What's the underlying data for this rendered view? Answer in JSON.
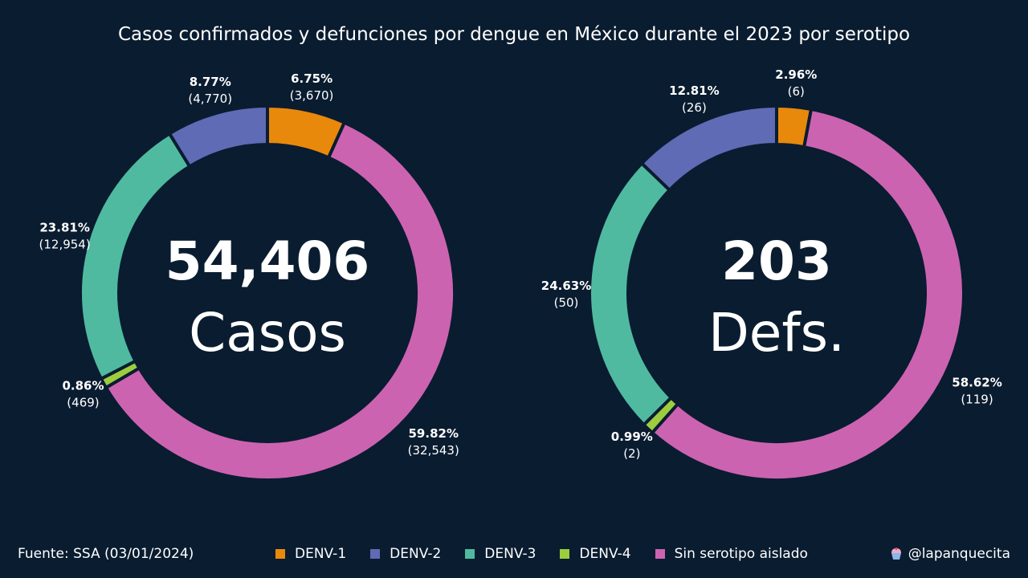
{
  "title": "Casos confirmados y defunciones por dengue en México durante el 2023 por serotipo",
  "source": "Fuente: SSA (03/01/2024)",
  "handle": "@lapanquecita",
  "legend": [
    {
      "label": "DENV-1",
      "color": "#e8890c"
    },
    {
      "label": "DENV-2",
      "color": "#5f6bb5"
    },
    {
      "label": "DENV-3",
      "color": "#4fbaa0"
    },
    {
      "label": "DENV-4",
      "color": "#9ccd3f"
    },
    {
      "label": "Sin serotipo aislado",
      "color": "#cc63b0"
    }
  ],
  "chart_data": [
    {
      "type": "pie",
      "donut": true,
      "center_value": "54,406",
      "center_label": "Casos",
      "slices": [
        {
          "name": "DENV-1",
          "value": 3670,
          "percent": "6.75%",
          "count": "(3,670)"
        },
        {
          "name": "Sin serotipo aislado",
          "value": 32543,
          "percent": "59.82%",
          "count": "(32,543)"
        },
        {
          "name": "DENV-4",
          "value": 469,
          "percent": "0.86%",
          "count": "(469)"
        },
        {
          "name": "DENV-3",
          "value": 12954,
          "percent": "23.81%",
          "count": "(12,954)"
        },
        {
          "name": "DENV-2",
          "value": 4770,
          "percent": "8.77%",
          "count": "(4,770)"
        }
      ]
    },
    {
      "type": "pie",
      "donut": true,
      "center_value": "203",
      "center_label": "Defs.",
      "slices": [
        {
          "name": "DENV-1",
          "value": 6,
          "percent": "2.96%",
          "count": "(6)"
        },
        {
          "name": "Sin serotipo aislado",
          "value": 119,
          "percent": "58.62%",
          "count": "(119)"
        },
        {
          "name": "DENV-4",
          "value": 2,
          "percent": "0.99%",
          "count": "(2)"
        },
        {
          "name": "DENV-3",
          "value": 50,
          "percent": "24.63%",
          "count": "(50)"
        },
        {
          "name": "DENV-2",
          "value": 26,
          "percent": "12.81%",
          "count": "(26)"
        }
      ]
    }
  ]
}
